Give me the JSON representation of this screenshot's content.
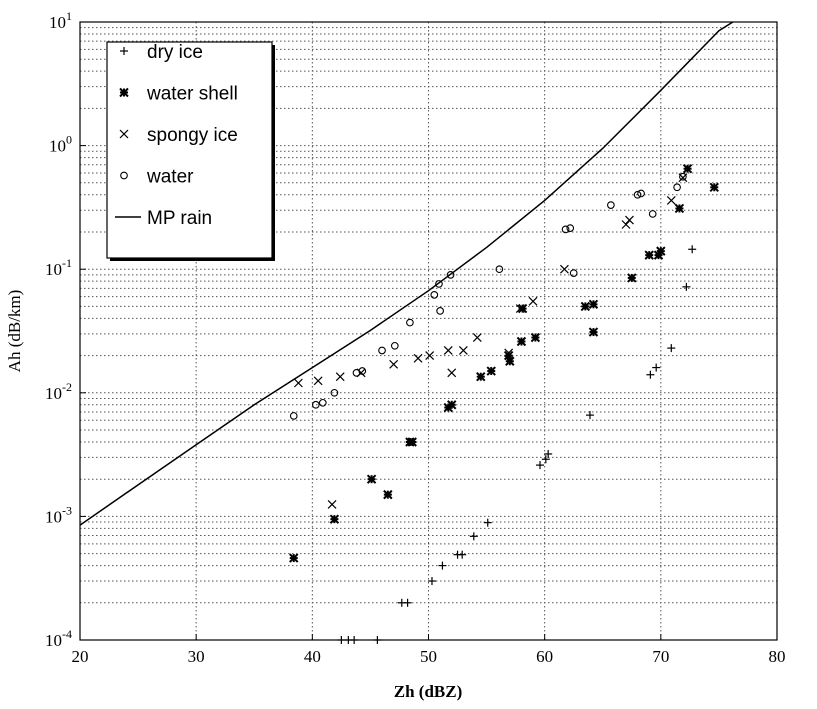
{
  "chart_data": {
    "type": "scatter",
    "xlabel": "Zh (dBZ)",
    "ylabel": "Ah (dB/km)",
    "xlim": [
      20,
      80
    ],
    "ylim": [
      0.0001,
      10
    ],
    "yscale": "log",
    "grid": true,
    "minor_grid": true,
    "legend": "upper left",
    "xticks": [
      20,
      30,
      40,
      50,
      60,
      70,
      80
    ],
    "yticks": [
      {
        "value": 0.0001,
        "label": "10^-4"
      },
      {
        "value": 0.001,
        "label": "10^-3"
      },
      {
        "value": 0.01,
        "label": "10^-2"
      },
      {
        "value": 0.1,
        "label": "10^-1"
      },
      {
        "value": 1,
        "label": "10^0"
      },
      {
        "value": 10,
        "label": "10^1"
      }
    ],
    "series": [
      {
        "name": "dry ice",
        "marker": "plus",
        "color": "#000000",
        "x": [
          42.5,
          43.1,
          43.6,
          45.6,
          47.7,
          48.2,
          50.3,
          51.2,
          52.5,
          52.9,
          53.9,
          55.1,
          59.6,
          60.1,
          60.3,
          63.9,
          69.1,
          69.6,
          70.9,
          72.2,
          72.7
        ],
        "values": [
          0.0001,
          0.0001,
          0.0001,
          0.0001,
          0.0002,
          0.0002,
          0.0003,
          0.0004,
          0.00049,
          0.00049,
          0.00069,
          0.00089,
          0.0026,
          0.0029,
          0.0032,
          0.0066,
          0.014,
          0.016,
          0.023,
          0.072,
          0.145
        ]
      },
      {
        "name": "water shell",
        "marker": "star",
        "color": "#000000",
        "x": [
          38.4,
          41.9,
          45.1,
          46.5,
          48.4,
          48.6,
          51.7,
          52.0,
          54.5,
          55.4,
          56.9,
          57.0,
          58.0,
          59.2,
          58.1,
          63.5,
          64.2,
          64.2,
          67.5,
          69.0,
          69.8,
          70.0,
          71.6,
          72.3,
          74.6
        ],
        "values": [
          0.00046,
          0.00095,
          0.002,
          0.0015,
          0.004,
          0.004,
          0.0076,
          0.008,
          0.0135,
          0.015,
          0.02,
          0.018,
          0.026,
          0.028,
          0.048,
          0.05,
          0.052,
          0.031,
          0.085,
          0.13,
          0.13,
          0.14,
          0.31,
          0.65,
          0.46
        ]
      },
      {
        "name": "spongy ice",
        "marker": "cross",
        "color": "#000000",
        "x": [
          38.8,
          40.5,
          41.7,
          42.4,
          44.2,
          47.0,
          49.1,
          50.1,
          51.7,
          52.0,
          53.0,
          54.2,
          56.9,
          57.9,
          59.0,
          61.7,
          67.0,
          67.3,
          70.9,
          71.9
        ],
        "values": [
          0.012,
          0.0125,
          0.00125,
          0.0135,
          0.0145,
          0.017,
          0.019,
          0.02,
          0.022,
          0.0145,
          0.022,
          0.028,
          0.021,
          0.048,
          0.055,
          0.1,
          0.23,
          0.25,
          0.36,
          0.55
        ]
      },
      {
        "name": "water",
        "marker": "circle",
        "color": "#000000",
        "x": [
          38.4,
          40.3,
          40.9,
          41.9,
          43.8,
          44.3,
          46.0,
          47.1,
          48.4,
          50.5,
          50.9,
          51.0,
          51.9,
          56.1,
          61.8,
          62.2,
          62.5,
          65.7,
          68.0,
          68.3,
          69.3,
          71.4,
          71.9
        ],
        "values": [
          0.0065,
          0.008,
          0.0083,
          0.01,
          0.0145,
          0.015,
          0.022,
          0.024,
          0.037,
          0.062,
          0.076,
          0.046,
          0.09,
          0.1,
          0.21,
          0.215,
          0.093,
          0.33,
          0.4,
          0.41,
          0.28,
          0.46,
          0.56
        ]
      },
      {
        "name": "MP rain",
        "marker": "line",
        "color": "#000000",
        "x": [
          20,
          25,
          30,
          35,
          40,
          45,
          50,
          55,
          60,
          65,
          70,
          75,
          76.2
        ],
        "values": [
          0.00085,
          0.0018,
          0.0038,
          0.008,
          0.016,
          0.032,
          0.067,
          0.15,
          0.36,
          0.95,
          2.8,
          8.5,
          10
        ]
      }
    ]
  }
}
